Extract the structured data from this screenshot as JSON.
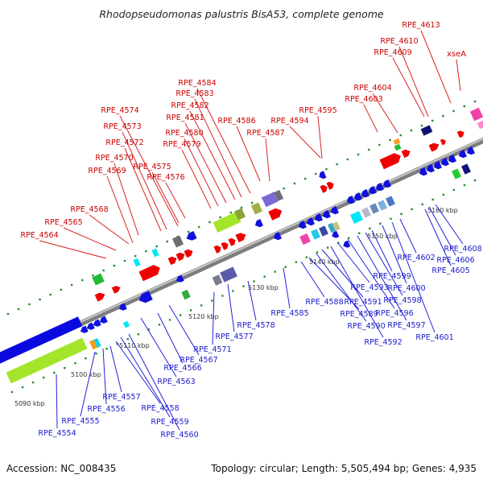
{
  "title": "Rhodopseudomonas palustris BisA53, complete genome",
  "footer": {
    "accession": "Accession: NC_008435",
    "summary": "Topology: circular; Length: 5,505,494 bp; Genes: 4,935"
  },
  "ticks": [
    "5090 kbp",
    "5100 kbp",
    "5110 kbp",
    "5120 kbp",
    "5130 kbp",
    "5140 kbp",
    "5150 kbp",
    "5160 kbp"
  ],
  "red_labels": [
    "RPE_4613",
    "RPE_4610",
    "RPE_4609",
    "xseA",
    "RPE_4604",
    "RPE_4603",
    "RPE_4595",
    "RPE_4594",
    "RPE_4587",
    "RPE_4586",
    "RPE_4584",
    "RPE_4583",
    "RPE_4582",
    "RPE_4581",
    "RPE_4580",
    "RPE_4579",
    "RPE_4576",
    "RPE_4575",
    "RPE_4574",
    "RPE_4573",
    "RPE_4572",
    "RPE_4570",
    "RPE_4569",
    "RPE_4568",
    "RPE_4565",
    "RPE_4564"
  ],
  "blue_labels": [
    "RPE_4608",
    "RPE_4606",
    "RPE_4605",
    "RPE_4602",
    "RPE_4601",
    "RPE_4600",
    "RPE_4599",
    "RPE_4598",
    "RPE_4597",
    "RPE_4596",
    "RPE_4593",
    "RPE_4592",
    "RPE_4591",
    "RPE_4590",
    "RPE_4589",
    "RPE_4588",
    "RPE_4585",
    "RPE_4578",
    "RPE_4577",
    "RPE_4571",
    "RPE_4567",
    "RPE_4566",
    "RPE_4563",
    "RPE_4560",
    "RPE_4559",
    "RPE_4558",
    "RPE_4557",
    "RPE_4556",
    "RPE_4555",
    "RPE_4554"
  ],
  "colors": {
    "forward": "#ee0000",
    "reverse": "#1010dd",
    "backbone": "#9a9a9a",
    "dots": "#2a8a2a",
    "red_line": "#dd2222",
    "blue_line": "#2222dd"
  }
}
